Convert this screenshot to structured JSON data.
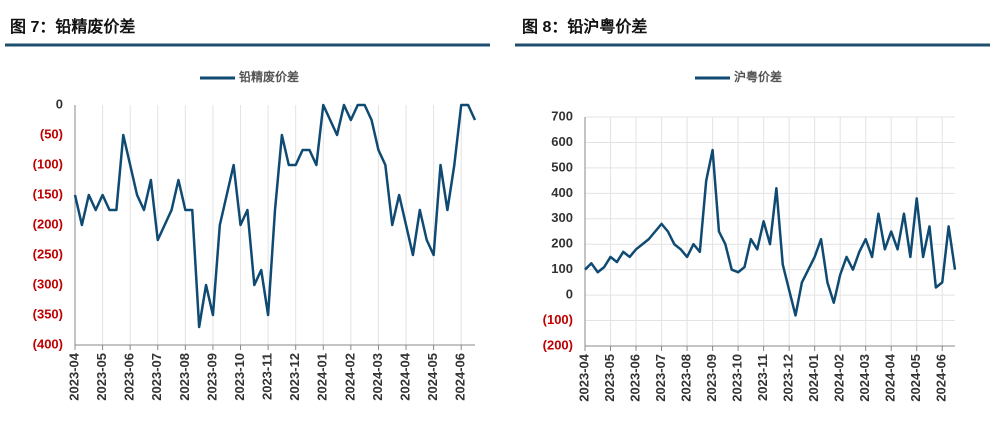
{
  "chart_data": [
    {
      "type": "line",
      "title": "图 7：铅精废价差",
      "categories": [
        "2023-04",
        null,
        null,
        null,
        "2023-05",
        null,
        null,
        null,
        "2023-06",
        null,
        null,
        null,
        "2023-07",
        null,
        null,
        null,
        "2023-08",
        null,
        null,
        null,
        "2023-09",
        null,
        null,
        null,
        "2023-10",
        null,
        null,
        null,
        "2023-11",
        null,
        null,
        null,
        "2023-12",
        null,
        null,
        null,
        "2024-01",
        null,
        null,
        null,
        "2024-02",
        null,
        null,
        null,
        "2024-03",
        null,
        null,
        null,
        "2024-04",
        null,
        null,
        null,
        "2024-05",
        null,
        null,
        null,
        "2024-06",
        null,
        null
      ],
      "series": [
        {
          "name": "铅精废价差",
          "color": "#0f4a73",
          "values": [
            -150,
            -200,
            -150,
            -175,
            -150,
            -175,
            -175,
            -50,
            -100,
            -150,
            -175,
            -125,
            -225,
            -200,
            -175,
            -125,
            -175,
            -175,
            -370,
            -300,
            -350,
            -200,
            -150,
            -100,
            -200,
            -175,
            -300,
            -275,
            -350,
            -175,
            -50,
            -100,
            -100,
            -75,
            -75,
            -100,
            0,
            -25,
            -50,
            0,
            -25,
            0,
            0,
            -25,
            -75,
            -100,
            -200,
            -150,
            -200,
            -250,
            -175,
            -225,
            -250,
            -100,
            -175,
            -100,
            0,
            0,
            -25
          ]
        }
      ],
      "ylim": [
        -400,
        0
      ],
      "yticks": [
        0,
        {
          "value": -50,
          "label": "(50)"
        },
        {
          "value": -100,
          "label": "(100)"
        },
        {
          "value": -150,
          "label": "(150)"
        },
        {
          "value": -200,
          "label": "(200)"
        },
        {
          "value": -250,
          "label": "(250)"
        },
        {
          "value": -300,
          "label": "(300)"
        },
        {
          "value": -350,
          "label": "(350)"
        },
        {
          "value": -400,
          "label": "(400)"
        }
      ],
      "negative_label_color": "#c00000",
      "grid": true
    },
    {
      "type": "line",
      "title": "图 8：铅沪粤价差",
      "categories": [
        "2023-04",
        null,
        null,
        null,
        "2023-05",
        null,
        null,
        null,
        "2023-06",
        null,
        null,
        null,
        "2023-07",
        null,
        null,
        null,
        "2023-08",
        null,
        null,
        null,
        "2023-09",
        null,
        null,
        null,
        "2023-10",
        null,
        null,
        null,
        "2023-11",
        null,
        null,
        null,
        "2023-12",
        null,
        null,
        null,
        "2024-01",
        null,
        null,
        null,
        "2024-02",
        null,
        null,
        null,
        "2024-03",
        null,
        null,
        null,
        "2024-04",
        null,
        null,
        null,
        "2024-05",
        null,
        null,
        null,
        "2024-06",
        null,
        null
      ],
      "series": [
        {
          "name": "沪粤价差",
          "color": "#0f4a73",
          "values": [
            100,
            125,
            90,
            110,
            150,
            130,
            170,
            150,
            180,
            200,
            220,
            250,
            280,
            250,
            200,
            180,
            150,
            200,
            170,
            450,
            570,
            250,
            200,
            100,
            90,
            110,
            220,
            180,
            290,
            200,
            420,
            120,
            20,
            -80,
            50,
            100,
            150,
            220,
            50,
            -30,
            80,
            150,
            100,
            170,
            220,
            150,
            320,
            180,
            250,
            180,
            320,
            150,
            380,
            150,
            270,
            30,
            50,
            270,
            100
          ]
        }
      ],
      "ylim": [
        -200,
        700
      ],
      "yticks": [
        700,
        600,
        500,
        400,
        300,
        200,
        100,
        0,
        {
          "value": -100,
          "label": "(100)"
        },
        {
          "value": -200,
          "label": "(200)"
        }
      ],
      "negative_label_color": "#c00000",
      "grid": true
    }
  ]
}
